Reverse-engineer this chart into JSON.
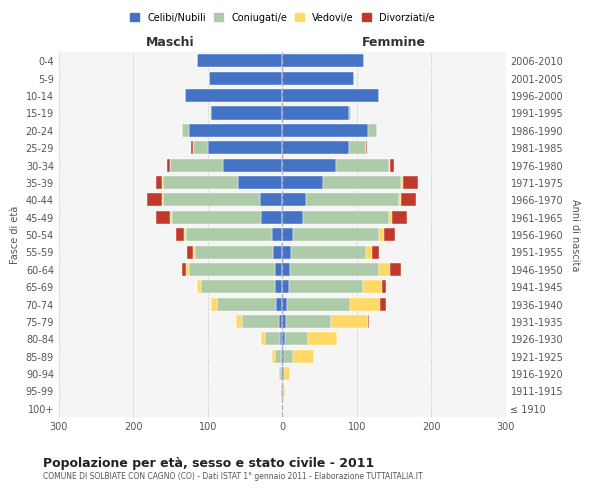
{
  "age_groups": [
    "100+",
    "95-99",
    "90-94",
    "85-89",
    "80-84",
    "75-79",
    "70-74",
    "65-69",
    "60-64",
    "55-59",
    "50-54",
    "45-49",
    "40-44",
    "35-39",
    "30-34",
    "25-29",
    "20-24",
    "15-19",
    "10-14",
    "5-9",
    "0-4"
  ],
  "birth_years": [
    "≤ 1910",
    "1911-1915",
    "1916-1920",
    "1921-1925",
    "1926-1930",
    "1931-1935",
    "1936-1940",
    "1941-1945",
    "1946-1950",
    "1951-1955",
    "1956-1960",
    "1961-1965",
    "1966-1970",
    "1971-1975",
    "1976-1980",
    "1981-1985",
    "1986-1990",
    "1991-1995",
    "1996-2000",
    "2001-2005",
    "2006-2010"
  ],
  "maschi": {
    "celibi": [
      0,
      1,
      2,
      2,
      3,
      4,
      8,
      9,
      10,
      12,
      14,
      28,
      30,
      60,
      80,
      100,
      125,
      95,
      130,
      98,
      115
    ],
    "coniugati": [
      0,
      0,
      2,
      8,
      20,
      50,
      80,
      100,
      115,
      105,
      115,
      120,
      130,
      100,
      70,
      20,
      10,
      2,
      0,
      0,
      0
    ],
    "vedovi": [
      0,
      0,
      0,
      4,
      5,
      8,
      8,
      5,
      4,
      3,
      3,
      2,
      1,
      1,
      0,
      0,
      0,
      0,
      0,
      0,
      0
    ],
    "divorziati": [
      0,
      0,
      0,
      0,
      0,
      0,
      0,
      0,
      5,
      8,
      10,
      20,
      20,
      8,
      5,
      2,
      0,
      0,
      0,
      0,
      0
    ]
  },
  "femmine": {
    "nubili": [
      0,
      1,
      2,
      3,
      4,
      5,
      6,
      9,
      10,
      12,
      15,
      28,
      32,
      55,
      72,
      90,
      115,
      90,
      130,
      97,
      110
    ],
    "coniugate": [
      0,
      0,
      1,
      12,
      30,
      60,
      85,
      100,
      120,
      100,
      115,
      115,
      125,
      105,
      72,
      22,
      12,
      3,
      0,
      0,
      0
    ],
    "vedove": [
      1,
      3,
      8,
      28,
      40,
      50,
      40,
      25,
      15,
      8,
      7,
      5,
      3,
      2,
      1,
      0,
      0,
      0,
      0,
      0,
      0
    ],
    "divorziate": [
      0,
      0,
      0,
      0,
      0,
      2,
      8,
      5,
      15,
      10,
      15,
      20,
      20,
      20,
      5,
      2,
      0,
      0,
      0,
      0,
      0
    ]
  },
  "colors": {
    "celibi": "#4472C4",
    "coniugati": "#AECBA9",
    "vedovi": "#FFD966",
    "divorziati": "#C0392B"
  },
  "xlim": 300,
  "title": "Popolazione per età, sesso e stato civile - 2011",
  "subtitle": "COMUNE DI SOLBIATE CON CAGNO (CO) - Dati ISTAT 1° gennaio 2011 - Elaborazione TUTTAITALIA.IT",
  "xlabel_left": "Maschi",
  "xlabel_right": "Femmine",
  "ylabel": "Fasce di età",
  "ylabel_right": "Anni di nascita",
  "background_color": "#ffffff",
  "grid_color": "#cccccc"
}
